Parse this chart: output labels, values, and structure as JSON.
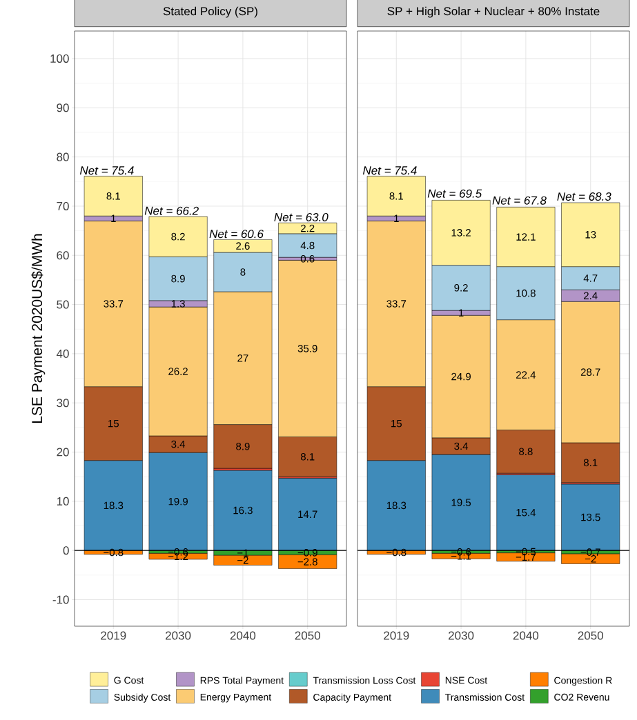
{
  "chart_data": [
    {
      "type": "bar",
      "stacked": true,
      "title": "Stated Policy (SP)",
      "ylabel": "LSE Payment 2020US$/MWh",
      "categories": [
        "2019",
        "2030",
        "2040",
        "2050"
      ],
      "series": [
        {
          "name": "Transmission Cost",
          "color": "#3F8BBA",
          "values": [
            18.3,
            19.9,
            16.3,
            14.7
          ],
          "value_labels": [
            "18.3",
            "19.9",
            "16.3",
            "14.7"
          ]
        },
        {
          "name": "NSE Cost",
          "color": "#E84534",
          "values": [
            null,
            null,
            0.4,
            0.3
          ],
          "value_labels": [
            null,
            null,
            null,
            null
          ]
        },
        {
          "name": "Capacity Payment",
          "color": "#B15928",
          "values": [
            15,
            3.4,
            8.9,
            8.1
          ],
          "value_labels": [
            "15",
            "3.4",
            "8.9",
            "8.1"
          ]
        },
        {
          "name": "Transmission Loss Cost",
          "color": "#66CCCC",
          "values": [
            null,
            null,
            null,
            null
          ],
          "value_labels": [
            null,
            null,
            null,
            null
          ]
        },
        {
          "name": "Energy Payment",
          "color": "#FBCB73",
          "values": [
            33.7,
            26.2,
            27,
            35.9
          ],
          "value_labels": [
            "33.7",
            "26.2",
            "27",
            "35.9"
          ]
        },
        {
          "name": "RPS Total Payment",
          "color": "#B294C7",
          "values": [
            1,
            1.3,
            null,
            0.6
          ],
          "value_labels": [
            "1",
            "1.3",
            null,
            "0.6"
          ]
        },
        {
          "name": "Subsidy Cost",
          "color": "#A6CEE3",
          "values": [
            null,
            8.9,
            8,
            4.8
          ],
          "value_labels": [
            null,
            "8.9",
            "8",
            "4.8"
          ]
        },
        {
          "name": "G Cost",
          "color": "#FFEF99",
          "values": [
            8.1,
            8.2,
            2.6,
            2.2
          ],
          "value_labels": [
            "8.1",
            "8.2",
            "2.6",
            "2.2"
          ]
        },
        {
          "name": "CO2 Revenu",
          "color": "#33A02C",
          "values": [
            null,
            -0.6,
            -1,
            -0.9
          ],
          "value_labels": [
            null,
            "−0.6",
            "−1",
            "−0.9"
          ]
        },
        {
          "name": "Congestion R",
          "color": "#FF7F00",
          "values": [
            -0.8,
            -1.2,
            -2,
            -2.8
          ],
          "value_labels": [
            "−0.8",
            "−1.2",
            "−2",
            "−2.8"
          ]
        }
      ],
      "annotations": [
        {
          "text": "Net = 75.4",
          "x": "2019",
          "y": 76.1
        },
        {
          "text": "Net = 66.2",
          "x": "2030",
          "y": 67.9
        },
        {
          "text": "Net = 60.6",
          "x": "2040",
          "y": 63.2
        },
        {
          "text": "Net = 63.0",
          "x": "2050",
          "y": 66.6
        }
      ],
      "ref_lines": [
        {
          "axis": "y",
          "value": 0,
          "color": "#000000"
        }
      ],
      "ylim": [
        -15.4,
        105.6
      ],
      "yticks": [
        -10,
        0,
        10,
        20,
        30,
        40,
        50,
        60,
        70,
        80,
        90,
        100
      ],
      "grid": true,
      "legend": "bottom"
    },
    {
      "type": "bar",
      "stacked": true,
      "title": "SP + High Solar + Nuclear + 80% Instate",
      "categories": [
        "2019",
        "2030",
        "2040",
        "2050"
      ],
      "series": [
        {
          "color": "#3F8BBA",
          "values": [
            18.3,
            19.5,
            15.4,
            13.5
          ],
          "value_labels": [
            "18.3",
            "19.5",
            "15.4",
            "13.5"
          ]
        },
        {
          "color": "#E84534",
          "values": [
            null,
            null,
            0.3,
            0.3
          ],
          "value_labels": [
            null,
            null,
            null,
            null
          ]
        },
        {
          "color": "#B15928",
          "values": [
            15,
            3.4,
            8.8,
            8.1
          ],
          "value_labels": [
            "15",
            "3.4",
            "8.8",
            "8.1"
          ]
        },
        {
          "color": "#66CCCC",
          "values": [
            null,
            null,
            null,
            null
          ],
          "value_labels": [
            null,
            null,
            null,
            null
          ]
        },
        {
          "color": "#FBCB73",
          "values": [
            33.7,
            24.9,
            22.4,
            28.7
          ],
          "value_labels": [
            "33.7",
            "24.9",
            "22.4",
            "28.7"
          ]
        },
        {
          "color": "#B294C7",
          "values": [
            1,
            1,
            null,
            2.4
          ],
          "value_labels": [
            "1",
            "1",
            null,
            "2.4"
          ]
        },
        {
          "color": "#A6CEE3",
          "values": [
            null,
            9.2,
            10.8,
            4.7
          ],
          "value_labels": [
            null,
            "9.2",
            "10.8",
            "4.7"
          ]
        },
        {
          "color": "#FFEF99",
          "values": [
            8.1,
            13.2,
            12.1,
            13
          ],
          "value_labels": [
            "8.1",
            "13.2",
            "12.1",
            "13"
          ]
        },
        {
          "color": "#33A02C",
          "values": [
            null,
            -0.6,
            -0.5,
            -0.7
          ],
          "value_labels": [
            null,
            "−0.6",
            "−0.5",
            "−0.7"
          ]
        },
        {
          "color": "#FF7F00",
          "values": [
            -0.8,
            -1.1,
            -1.7,
            -2
          ],
          "value_labels": [
            "−0.8",
            "−1.1",
            "−1.7",
            "−2"
          ]
        }
      ],
      "annotations": [
        {
          "text": "Net = 75.4",
          "x": "2019",
          "y": 76.1
        },
        {
          "text": "Net = 69.5",
          "x": "2030",
          "y": 71.4
        },
        {
          "text": "Net = 67.8",
          "x": "2040",
          "y": 70
        },
        {
          "text": "Net = 68.3",
          "x": "2050",
          "y": 70.8
        }
      ],
      "ref_lines": [
        {
          "axis": "y",
          "value": 0,
          "color": "#000000"
        }
      ],
      "ylim": [
        -15.4,
        105.6
      ],
      "yticks": [
        -10,
        0,
        10,
        20,
        30,
        40,
        50,
        60,
        70,
        80,
        90,
        100
      ],
      "grid": true,
      "tick_labels": "x"
    }
  ]
}
